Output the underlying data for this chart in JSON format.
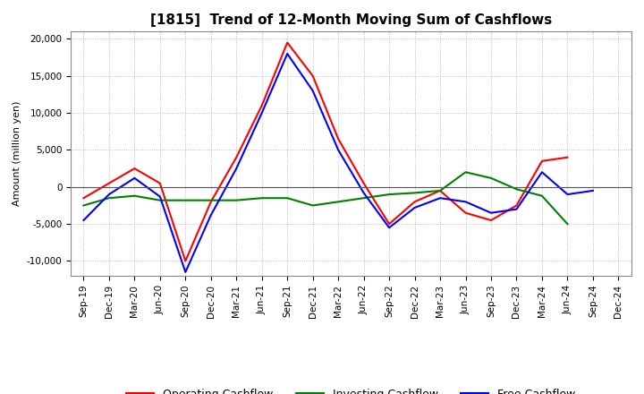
{
  "title": "[1815]  Trend of 12-Month Moving Sum of Cashflows",
  "ylabel": "Amount (million yen)",
  "xlabels": [
    "Sep-19",
    "Dec-19",
    "Mar-20",
    "Jun-20",
    "Sep-20",
    "Dec-20",
    "Mar-21",
    "Jun-21",
    "Sep-21",
    "Dec-21",
    "Mar-22",
    "Jun-22",
    "Sep-22",
    "Dec-22",
    "Mar-23",
    "Jun-23",
    "Sep-23",
    "Dec-23",
    "Mar-24",
    "Jun-24",
    "Sep-24",
    "Dec-24"
  ],
  "operating": [
    -1500,
    500,
    2500,
    500,
    -10000,
    -2000,
    4000,
    11000,
    19500,
    15000,
    6500,
    500,
    -5000,
    -2000,
    -500,
    -3500,
    -4500,
    -2500,
    3500,
    4000,
    null,
    null
  ],
  "investing": [
    -2500,
    -1500,
    -1200,
    -1800,
    -1800,
    -1800,
    -1800,
    -1500,
    -1500,
    -2500,
    -2000,
    -1500,
    -1000,
    -800,
    -500,
    2000,
    1200,
    -300,
    -1200,
    -5000,
    null,
    null
  ],
  "free": [
    -4500,
    -1000,
    1200,
    -1300,
    -11500,
    -3800,
    2500,
    10000,
    18000,
    13000,
    5000,
    -800,
    -5500,
    -2800,
    -1500,
    -2000,
    -3500,
    -3000,
    2000,
    -1000,
    -500,
    null
  ],
  "ylim": [
    -12000,
    21000
  ],
  "yticks": [
    -10000,
    -5000,
    0,
    5000,
    10000,
    15000,
    20000
  ],
  "operating_color": "#ff0000",
  "investing_color": "#008000",
  "free_color": "#0000ff",
  "background_color": "#ffffff",
  "grid_color": "#aaaaaa",
  "title_fontsize": 11,
  "tick_fontsize": 7.5,
  "ylabel_fontsize": 8,
  "legend_fontsize": 9,
  "linewidth": 1.5
}
